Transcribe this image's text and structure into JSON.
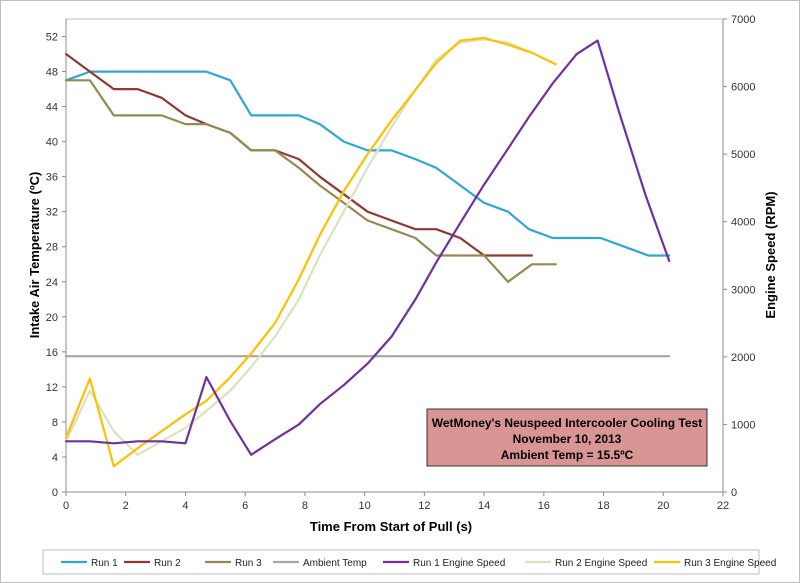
{
  "chart_data": {
    "type": "line",
    "title": "",
    "xlabel": "Time From Start of Pull (s)",
    "ylabel_left": "Intake Air Temperature (ºC)",
    "ylabel_right": "Engine Speed (RPM)",
    "xlim": [
      0,
      22
    ],
    "ylim_left": [
      0,
      54
    ],
    "ylim_right": [
      0,
      7000
    ],
    "x_ticks": [
      0,
      2,
      4,
      6,
      8,
      10,
      12,
      14,
      16,
      18,
      20,
      22
    ],
    "y_left_ticks": [
      0,
      4,
      8,
      12,
      16,
      20,
      24,
      28,
      32,
      36,
      40,
      44,
      48,
      52
    ],
    "y_right_ticks": [
      0,
      1000,
      2000,
      3000,
      4000,
      5000,
      6000,
      7000
    ],
    "grid": false,
    "legend_position": "bottom",
    "annotation": {
      "lines": [
        "WetMoney's Neuspeed Intercooler Cooling Test",
        "November 10, 2013",
        "Ambient Temp = 15.5ºC"
      ],
      "fill": "#d99594",
      "stroke": "#333333"
    },
    "series": [
      {
        "name": "Run 1",
        "axis": "left",
        "color": "#2ea6d8",
        "x": [
          0,
          0.8,
          1.6,
          2.4,
          3.2,
          4.0,
          4.7,
          5.5,
          6.2,
          7.0,
          7.8,
          8.5,
          9.3,
          10.1,
          10.9,
          11.7,
          12.4,
          13.2,
          14.0,
          14.8,
          15.5,
          16.3,
          17.1,
          17.9,
          18.7,
          19.5,
          20.2
        ],
        "y": [
          47,
          48,
          48,
          48,
          48,
          48,
          48,
          47,
          43,
          43,
          43,
          42,
          40,
          39,
          39,
          38,
          37,
          35,
          33,
          32,
          30,
          29,
          29,
          29,
          28,
          27,
          27
        ]
      },
      {
        "name": "Run 2",
        "axis": "left",
        "color": "#943634",
        "x": [
          0,
          0.8,
          1.6,
          2.4,
          3.2,
          4.0,
          4.7,
          5.5,
          6.2,
          7.0,
          7.8,
          8.5,
          9.3,
          10.1,
          10.9,
          11.7,
          12.4,
          13.2,
          14.0,
          14.8,
          15.6
        ],
        "y": [
          50,
          48,
          46,
          46,
          45,
          43,
          42,
          41,
          39,
          39,
          38,
          36,
          34,
          32,
          31,
          30,
          30,
          29,
          27,
          27,
          27
        ]
      },
      {
        "name": "Run 3",
        "axis": "left",
        "color": "#948a54",
        "x": [
          0,
          0.8,
          1.6,
          2.4,
          3.2,
          4.0,
          4.7,
          5.5,
          6.2,
          7.0,
          7.8,
          8.5,
          9.3,
          10.1,
          10.9,
          11.7,
          12.4,
          13.2,
          14.0,
          14.8,
          15.6,
          16.4
        ],
        "y": [
          47,
          47,
          43,
          43,
          43,
          42,
          42,
          41,
          39,
          39,
          37,
          35,
          33,
          31,
          30,
          29,
          27,
          27,
          27,
          24,
          26,
          26
        ]
      },
      {
        "name": "Ambient Temp",
        "axis": "left",
        "color": "#a6a6a6",
        "x": [
          0,
          20.2
        ],
        "y": [
          15.5,
          15.5
        ]
      },
      {
        "name": "Run 1 Engine Speed",
        "axis": "right",
        "color": "#7030a0",
        "x": [
          0,
          0.8,
          1.6,
          2.4,
          3.2,
          4.0,
          4.7,
          5.5,
          6.2,
          7.0,
          7.8,
          8.5,
          9.3,
          10.1,
          10.9,
          11.7,
          12.4,
          13.2,
          14.0,
          14.8,
          15.5,
          16.3,
          17.1,
          17.8,
          18.5,
          19.4,
          20.2
        ],
        "y": [
          750,
          750,
          720,
          750,
          750,
          720,
          1700,
          1050,
          550,
          780,
          1000,
          1300,
          1580,
          1900,
          2300,
          2850,
          3400,
          3980,
          4550,
          5080,
          5550,
          6050,
          6480,
          6680,
          5650,
          4400,
          3420
        ]
      },
      {
        "name": "Run 2 Engine Speed",
        "axis": "right",
        "color": "#d7e4bd",
        "x": [
          0,
          0.8,
          1.6,
          2.4,
          3.2,
          4.0,
          4.7,
          5.5,
          6.2,
          7.0,
          7.8,
          8.5,
          9.3,
          10.1,
          10.9,
          11.7,
          12.4,
          13.2,
          14.0,
          14.8,
          15.5
        ],
        "y": [
          750,
          1500,
          900,
          550,
          750,
          950,
          1200,
          1500,
          1850,
          2300,
          2850,
          3500,
          4150,
          4800,
          5400,
          5950,
          6400,
          6650,
          6700,
          6650,
          6520
        ]
      },
      {
        "name": "Run 3 Engine Speed",
        "axis": "right",
        "color": "#ffc000",
        "x": [
          0,
          0.8,
          1.6,
          2.4,
          3.2,
          4.0,
          4.7,
          5.5,
          6.2,
          7.0,
          7.8,
          8.5,
          9.3,
          10.1,
          10.9,
          11.7,
          12.4,
          13.2,
          14.0,
          14.8,
          15.6,
          16.4
        ],
        "y": [
          800,
          1680,
          380,
          650,
          900,
          1150,
          1350,
          1700,
          2050,
          2500,
          3150,
          3800,
          4450,
          5000,
          5500,
          5950,
          6350,
          6680,
          6720,
          6620,
          6500,
          6330
        ]
      }
    ]
  }
}
